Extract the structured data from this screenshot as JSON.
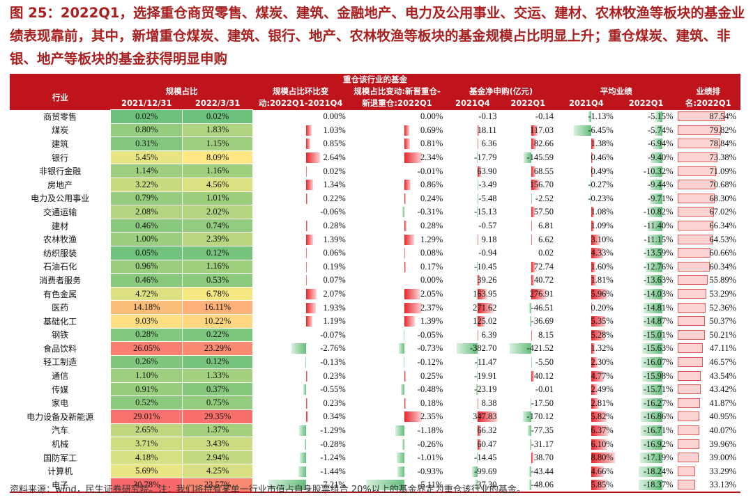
{
  "title": "图 25：2022Q1，选择重仓商贸零售、煤炭、建筑、金融地产、电力及公用事业、交运、建材、农林牧渔等板块的基金业绩表现靠前，其中，新增重仓煤炭、建筑、银行、地产、农林牧渔等板块的基金规模占比明显上升；重仓煤炭、建筑、非银、地产等板块的基金获得明显申购",
  "header": {
    "group": "重仓该行业的基金",
    "industry": "行业",
    "scale": "规模占比",
    "scale_d1": "2021/12/31",
    "scale_d2": "2022/3/31",
    "chg_l1": "规模占比环比变",
    "chg_l2": "动:2022Q1-2021Q4",
    "new_l1": "规模占比变动:新晋重仓-",
    "new_l2": "新退重仓:2022Q1",
    "flow": "基金净申购(亿元)",
    "flow_q4": "2021Q4",
    "flow_q1": "2022Q1",
    "perf": "平均业绩",
    "perf_q4": "2021Q4",
    "perf_q1": "2022Q1",
    "rank_l1": "业绩排",
    "rank_l2": "名:2022Q1"
  },
  "rows": [
    {
      "name": "商贸零售",
      "s1": "0.02%",
      "s2": "0.02%",
      "chg": "0.00%",
      "new": "0.00%",
      "f4": "-0.13",
      "f1": "-0.14",
      "p4": "-1.13%",
      "p1": "-5.15%",
      "rank": "87.54%"
    },
    {
      "name": "煤炭",
      "s1": "0.80%",
      "s2": "1.83%",
      "chg": "1.03%",
      "new": "0.69%",
      "f4": "18.11",
      "f1": "117.03",
      "p4": "-6.45%",
      "p1": "-5.74%",
      "rank": "79.82%"
    },
    {
      "name": "建筑",
      "s1": "0.31%",
      "s2": "1.15%",
      "chg": "0.85%",
      "new": "0.81%",
      "f4": "6.36",
      "f1": "82.66",
      "p4": "1.38%",
      "p1": "-6.94%",
      "rank": "78.84%"
    },
    {
      "name": "银行",
      "s1": "5.45%",
      "s2": "8.09%",
      "chg": "2.64%",
      "new": "2.34%",
      "f4": "-17.79",
      "f1": "-145.59",
      "p4": "0.46%",
      "p1": "-9.40%",
      "rank": "73.38%"
    },
    {
      "name": "非银行金融",
      "s1": "1.14%",
      "s2": "1.16%",
      "chg": "0.02%",
      "new": "-0.01%",
      "f4": "63.90",
      "f1": "68.55",
      "p4": "0.49%",
      "p1": "-10.32%",
      "rank": "71.09%"
    },
    {
      "name": "房地产",
      "s1": "3.22%",
      "s2": "4.56%",
      "chg": "1.34%",
      "new": "0.86%",
      "f4": "-3.49",
      "f1": "156.70",
      "p4": "-0.27%",
      "p1": "-9.44%",
      "rank": "70.68%"
    },
    {
      "name": "电力及公用事业",
      "s1": "0.79%",
      "s2": "1.01%",
      "chg": "0.22%",
      "new": "0.24%",
      "f4": "-5.48",
      "f1": "-2.52",
      "p4": "-0.23%",
      "p1": "-9.71%",
      "rank": "68.30%"
    },
    {
      "name": "交通运输",
      "s1": "2.08%",
      "s2": "2.02%",
      "chg": "-0.06%",
      "new": "-0.31%",
      "f4": "-15.13",
      "f1": "57.50",
      "p4": "1.08%",
      "p1": "-10.82%",
      "rank": "67.02%"
    },
    {
      "name": "建材",
      "s1": "0.46%",
      "s2": "0.74%",
      "chg": "0.28%",
      "new": "0.28%",
      "f4": "-0.57",
      "f1": "6.81",
      "p4": "1.09%",
      "p1": "-11.40%",
      "rank": "66.34%"
    },
    {
      "name": "农林牧渔",
      "s1": "1.00%",
      "s2": "2.39%",
      "chg": "1.39%",
      "new": "1.29%",
      "f4": "9.18",
      "f1": "6.62",
      "p4": "3.10%",
      "p1": "-11.15%",
      "rank": "64.53%"
    },
    {
      "name": "纺织服装",
      "s1": "0.05%",
      "s2": "0.12%",
      "chg": "0.06%",
      "new": "0.08%",
      "f4": "-0.94",
      "f1": "0.02",
      "p4": "4.33%",
      "p1": "-13.59%",
      "rank": "60.66%"
    },
    {
      "name": "石油石化",
      "s1": "0.96%",
      "s2": "1.16%",
      "chg": "0.19%",
      "new": "0.17%",
      "f4": "-10.45",
      "f1": "72.74",
      "p4": "1.60%",
      "p1": "-12.76%",
      "rank": "60.34%"
    },
    {
      "name": "消费者服务",
      "s1": "0.46%",
      "s2": "0.53%",
      "chg": "0.07%",
      "new": "0.00%",
      "f4": "39.26",
      "f1": "40.72",
      "p4": "1.81%",
      "p1": "-13.63%",
      "rank": "55.89%"
    },
    {
      "name": "有色金属",
      "s1": "4.72%",
      "s2": "6.78%",
      "chg": "2.07%",
      "new": "2.05%",
      "f4": "163.95",
      "f1": "276.91",
      "p4": "5.96%",
      "p1": "-14.03%",
      "rank": "53.29%"
    },
    {
      "name": "医药",
      "s1": "14.18%",
      "s2": "16.11%",
      "chg": "1.93%",
      "new": "2.37%",
      "f4": "271.62",
      "f1": "-46.51",
      "p4": "0.20%",
      "p1": "-14.81%",
      "rank": "52.36%"
    },
    {
      "name": "基础化工",
      "s1": "9.03%",
      "s2": "10.22%",
      "chg": "1.19%",
      "new": "1.39%",
      "f4": "125.02",
      "f1": "-36.69",
      "p4": "5.35%",
      "p1": "-14.87%",
      "rank": "50.37%"
    },
    {
      "name": "钢铁",
      "s1": "0.28%",
      "s2": "0.22%",
      "chg": "-0.07%",
      "new": "-0.05%",
      "f4": "6.39",
      "f1": "8.15",
      "p4": "5.28%",
      "p1": "-15.01%",
      "rank": "50.21%"
    },
    {
      "name": "食品饮料",
      "s1": "26.05%",
      "s2": "23.29%",
      "chg": "-2.76%",
      "new": "-0.73%",
      "f4": "-382.70",
      "f1": "-421.52",
      "p4": "1.32%",
      "p1": "-15.63%",
      "rank": "47.11%"
    },
    {
      "name": "轻工制造",
      "s1": "0.26%",
      "s2": "0.12%",
      "chg": "-0.13%",
      "new": "-0.12%",
      "f4": "-11.47",
      "f1": "-5.50",
      "p4": "2.30%",
      "p1": "-16.07%",
      "rank": "46.57%"
    },
    {
      "name": "通信",
      "s1": "1.10%",
      "s2": "1.33%",
      "chg": "0.23%",
      "new": "0.25%",
      "f4": "-19.91",
      "f1": "40.12",
      "p4": "4.77%",
      "p1": "-15.98%",
      "rank": "43.54%"
    },
    {
      "name": "传媒",
      "s1": "0.91%",
      "s2": "0.37%",
      "chg": "-0.55%",
      "new": "-0.48%",
      "f4": "-23.19",
      "f1": "-0.01",
      "p4": "2.49%",
      "p1": "-15.71%",
      "rank": "43.42%"
    },
    {
      "name": "家电",
      "s1": "0.52%",
      "s2": "0.75%",
      "chg": "0.23%",
      "new": "0.18%",
      "f4": "8.38",
      "f1": "-17.50",
      "p4": "2.81%",
      "p1": "-16.27%",
      "rank": "41.87%"
    },
    {
      "name": "电力设备及新能源",
      "s1": "29.01%",
      "s2": "29.35%",
      "chg": "0.34%",
      "new": "2.35%",
      "f4": "347.83",
      "f1": "-170.12",
      "p4": "5.82%",
      "p1": "-16.86%",
      "rank": "40.95%"
    },
    {
      "name": "汽车",
      "s1": "2.65%",
      "s2": "1.37%",
      "chg": "-1.29%",
      "new": "-1.18%",
      "f4": "66.32",
      "f1": "-77.35",
      "p4": "6.37%",
      "p1": "-16.71%",
      "rank": "40.07%"
    },
    {
      "name": "机械",
      "s1": "3.71%",
      "s2": "3.43%",
      "chg": "-0.28%",
      "new": "-0.26%",
      "f4": "60.47",
      "f1": "-31.17",
      "p4": "6.10%",
      "p1": "-16.92%",
      "rank": "39.96%"
    },
    {
      "name": "国防军工",
      "s1": "4.18%",
      "s2": "2.94%",
      "chg": "-1.24%",
      "new": "-1.01%",
      "f4": "-14.45",
      "f1": "38.70",
      "p4": "8.80%",
      "p1": "-17.19%",
      "rank": "39.00%"
    },
    {
      "name": "计算机",
      "s1": "5.69%",
      "s2": "4.25%",
      "chg": "-1.44%",
      "new": "-0.93%",
      "f4": "-99.69",
      "f1": "-43.44",
      "p4": "4.66%",
      "p1": "-18.24%",
      "rank": "33.29%"
    },
    {
      "name": "电子",
      "s1": "30.78%",
      "s2": "23.57%",
      "chg": "-7.21%",
      "new": "-5.11%",
      "f4": "-37.30",
      "f1": "-48.06",
      "p4": "5.85%",
      "p1": "-18.37%",
      "rank": "33.13%"
    }
  ],
  "footnote": "资料来源：wind，民生证券研究院。注：我们将持有某单一行业市值占自身股票组合 20%以上的基金界定为重仓该行业的基金。",
  "colors": {
    "red": "#e8252b",
    "green": "#63be7b",
    "header": "#c0141d",
    "rank_fill": "#fcd3d3"
  }
}
